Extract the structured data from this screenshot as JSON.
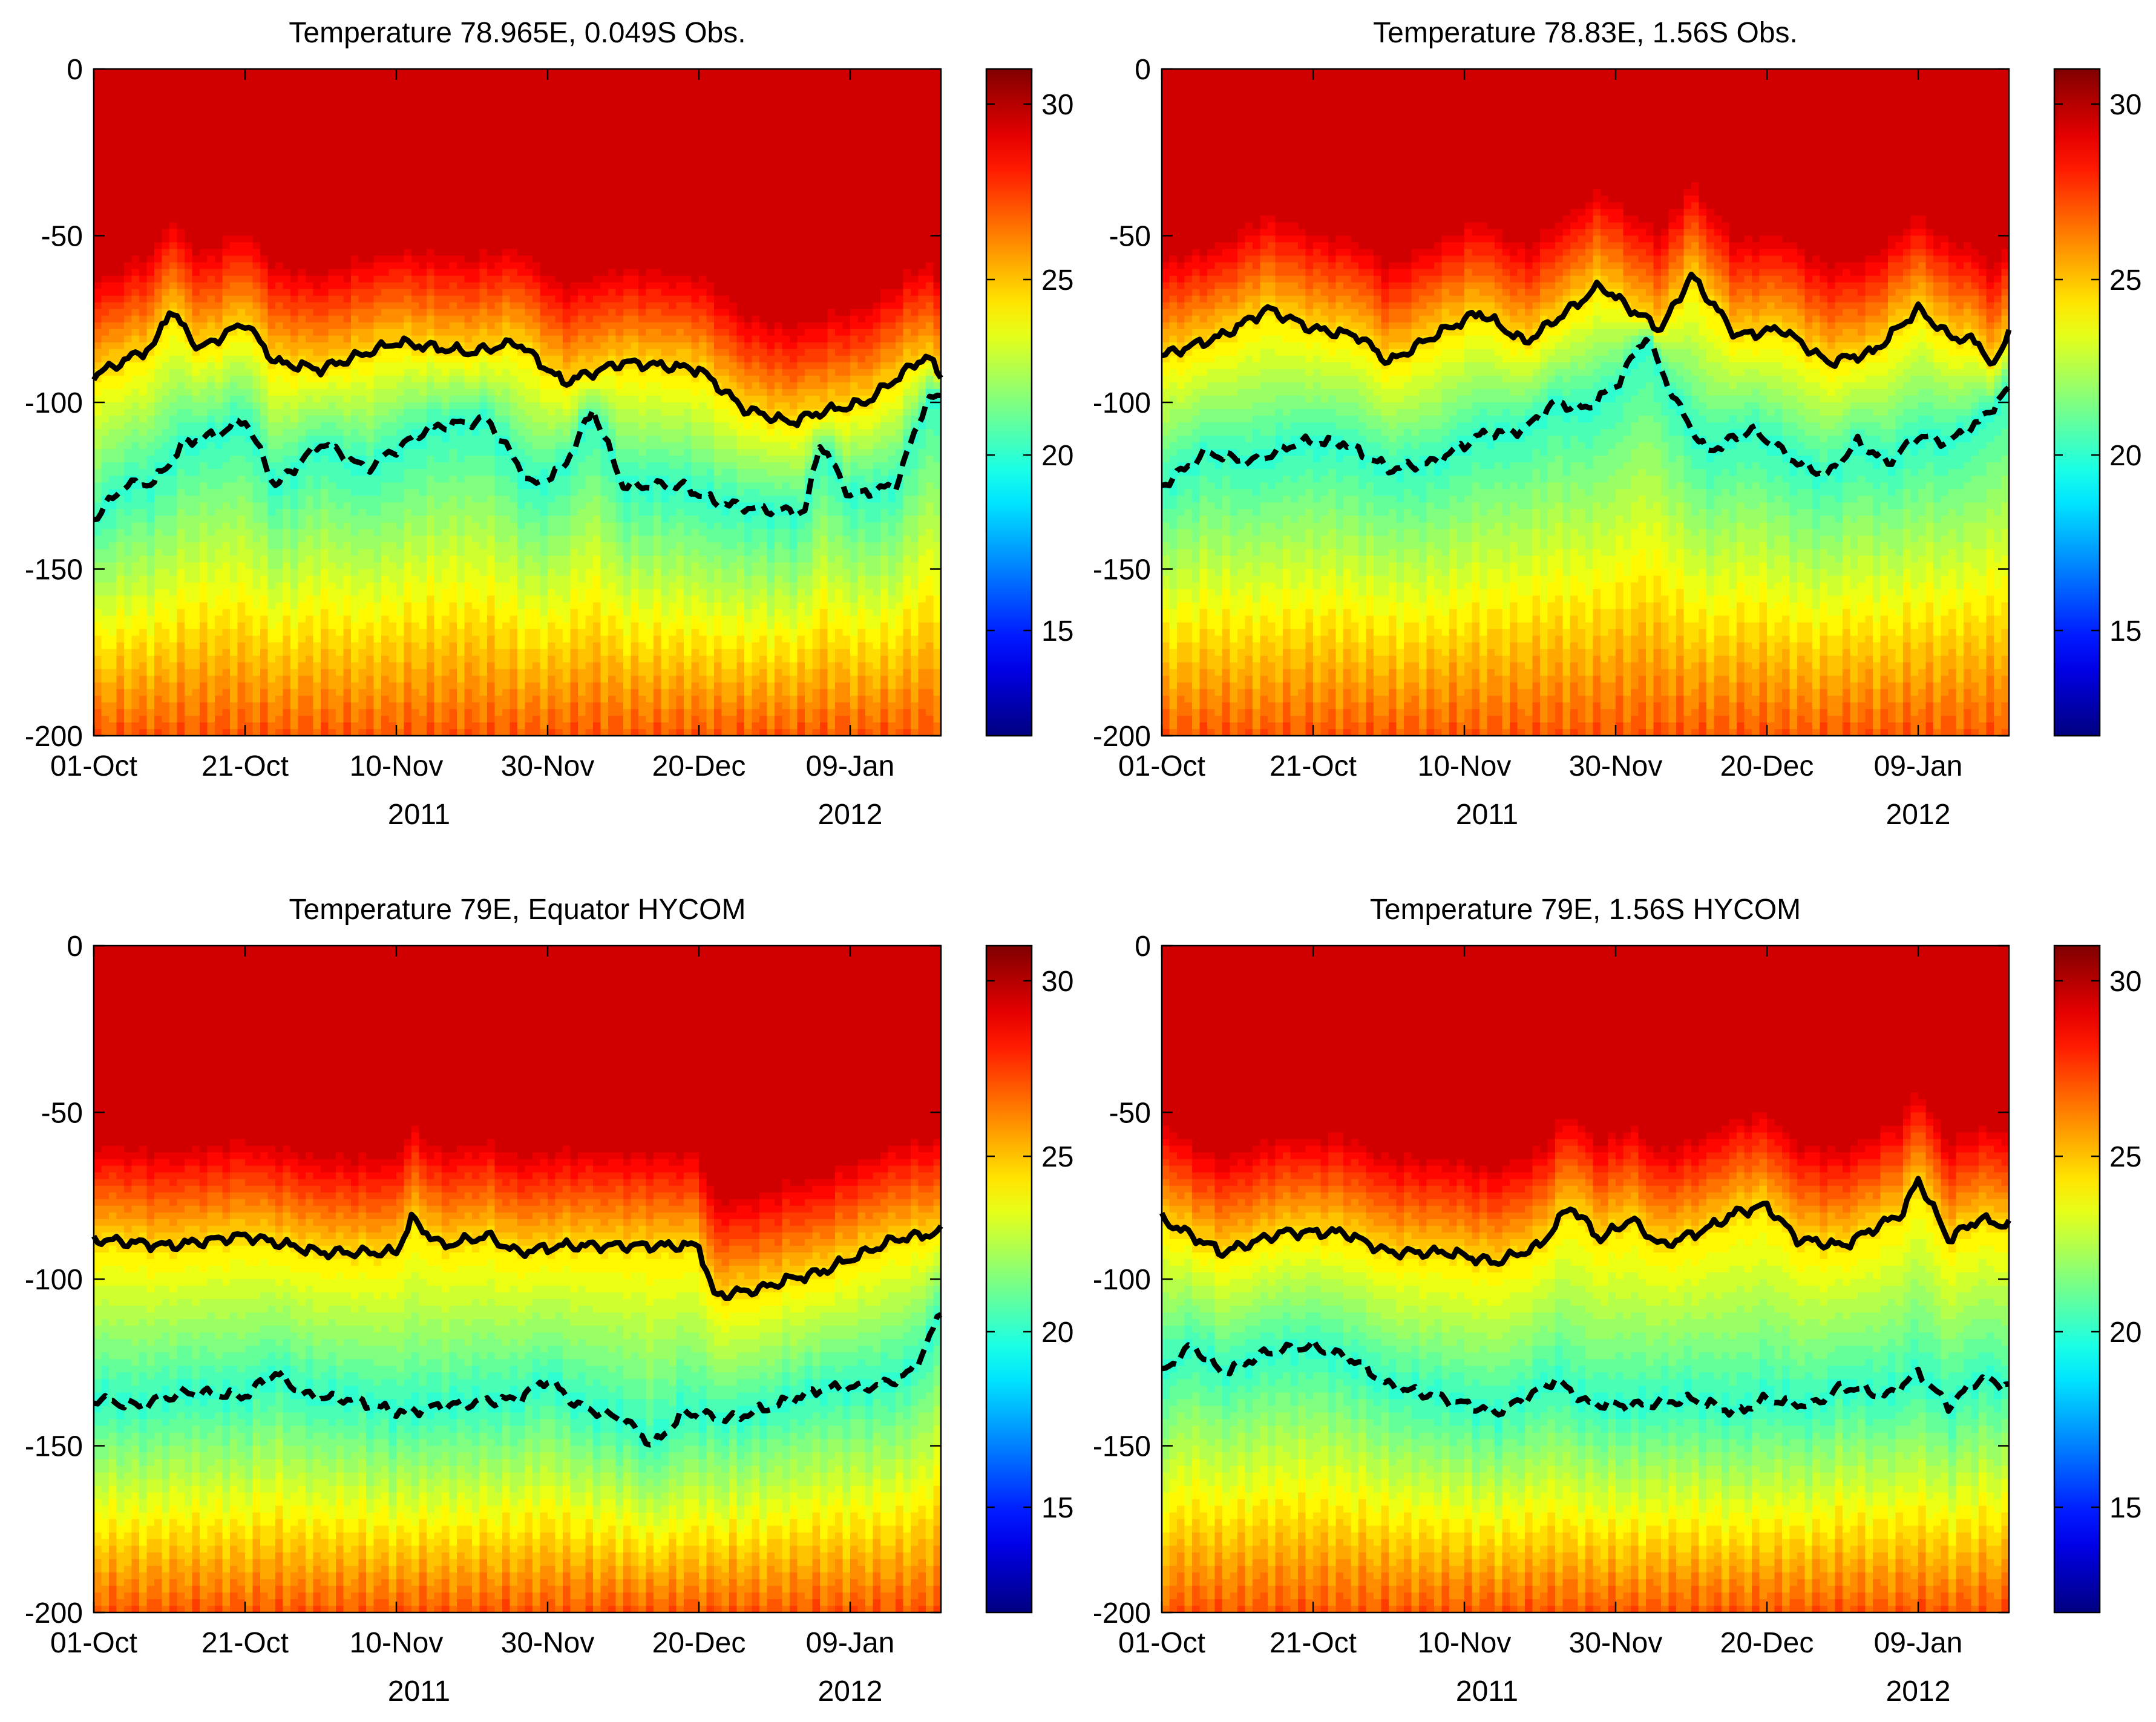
{
  "figure": {
    "kind": "4-panel time-depth temperature sections"
  },
  "chart_data": [
    {
      "type": "heatmap",
      "title": "Temperature 78.965E, 0.049S Obs.",
      "x_tick_labels": [
        "01-Oct",
        "21-Oct",
        "10-Nov",
        "30-Nov",
        "20-Dec",
        "09-Jan"
      ],
      "x_tick_days": [
        0,
        20,
        40,
        60,
        80,
        100
      ],
      "year_labels": [
        "2011",
        "2012"
      ],
      "year_label_days": [
        43,
        100
      ],
      "x_range_days": [
        0,
        112
      ],
      "y_ticks": [
        0,
        -50,
        -100,
        -150,
        -200
      ],
      "y_tick_labels": [
        "0",
        "-50",
        "-100",
        "-150",
        "-200"
      ],
      "ylim": [
        -200,
        0
      ],
      "colorbar": {
        "range": [
          12,
          31
        ],
        "ticks": [
          15,
          20,
          25,
          30
        ],
        "tick_labels": [
          "15",
          "20",
          "25",
          "30"
        ],
        "colormap": "jet"
      },
      "series": [
        {
          "name": "isotherm (solid)",
          "style": "solid",
          "base_depth": -88,
          "amplitude": 5,
          "seed": 11,
          "knots": [
            [
              0,
              -92
            ],
            [
              8,
              -83
            ],
            [
              10,
              -72
            ],
            [
              14,
              -84
            ],
            [
              20,
              -76
            ],
            [
              24,
              -88
            ],
            [
              30,
              -90
            ],
            [
              40,
              -82
            ],
            [
              50,
              -85
            ],
            [
              56,
              -82
            ],
            [
              62,
              -94
            ],
            [
              70,
              -88
            ],
            [
              80,
              -90
            ],
            [
              86,
              -102
            ],
            [
              92,
              -106
            ],
            [
              96,
              -103
            ],
            [
              102,
              -100
            ],
            [
              106,
              -93
            ],
            [
              110,
              -86
            ],
            [
              112,
              -92
            ]
          ]
        },
        {
          "name": "isotherm (dashed)",
          "style": "dashed",
          "base_depth": -120,
          "amplitude": 7,
          "seed": 23,
          "knots": [
            [
              0,
              -135
            ],
            [
              4,
              -125
            ],
            [
              8,
              -124
            ],
            [
              12,
              -112
            ],
            [
              16,
              -110
            ],
            [
              20,
              -105
            ],
            [
              24,
              -125
            ],
            [
              30,
              -112
            ],
            [
              36,
              -120
            ],
            [
              44,
              -108
            ],
            [
              52,
              -105
            ],
            [
              58,
              -125
            ],
            [
              62,
              -120
            ],
            [
              66,
              -102
            ],
            [
              70,
              -125
            ],
            [
              78,
              -125
            ],
            [
              82,
              -130
            ],
            [
              88,
              -132
            ],
            [
              94,
              -133
            ],
            [
              96,
              -112
            ],
            [
              100,
              -128
            ],
            [
              106,
              -125
            ],
            [
              110,
              -100
            ],
            [
              112,
              -98
            ]
          ]
        }
      ]
    },
    {
      "type": "heatmap",
      "title": "Temperature 78.83E, 1.56S Obs.",
      "x_tick_labels": [
        "01-Oct",
        "21-Oct",
        "10-Nov",
        "30-Nov",
        "20-Dec",
        "09-Jan"
      ],
      "x_tick_days": [
        0,
        20,
        40,
        60,
        80,
        100
      ],
      "year_labels": [
        "2011",
        "2012"
      ],
      "year_label_days": [
        43,
        100
      ],
      "x_range_days": [
        0,
        112
      ],
      "y_ticks": [
        0,
        -50,
        -100,
        -150,
        -200
      ],
      "y_tick_labels": [
        "0",
        "-50",
        "-100",
        "-150",
        "-200"
      ],
      "ylim": [
        -200,
        0
      ],
      "colorbar": {
        "range": [
          12,
          31
        ],
        "ticks": [
          15,
          20,
          25,
          30
        ],
        "tick_labels": [
          "15",
          "20",
          "25",
          "30"
        ],
        "colormap": "jet"
      },
      "series": [
        {
          "name": "isotherm (solid)",
          "style": "solid",
          "base_depth": -80,
          "amplitude": 6,
          "seed": 31,
          "knots": [
            [
              0,
              -86
            ],
            [
              8,
              -80
            ],
            [
              14,
              -72
            ],
            [
              20,
              -78
            ],
            [
              26,
              -80
            ],
            [
              30,
              -88
            ],
            [
              36,
              -80
            ],
            [
              42,
              -73
            ],
            [
              48,
              -82
            ],
            [
              54,
              -72
            ],
            [
              58,
              -65
            ],
            [
              62,
              -72
            ],
            [
              66,
              -78
            ],
            [
              70,
              -62
            ],
            [
              76,
              -80
            ],
            [
              82,
              -78
            ],
            [
              88,
              -88
            ],
            [
              94,
              -85
            ],
            [
              100,
              -72
            ],
            [
              104,
              -80
            ],
            [
              108,
              -82
            ],
            [
              110,
              -90
            ],
            [
              112,
              -78
            ]
          ]
        },
        {
          "name": "isotherm (dashed)",
          "style": "dashed",
          "base_depth": -112,
          "amplitude": 7,
          "seed": 41,
          "knots": [
            [
              0,
              -125
            ],
            [
              6,
              -115
            ],
            [
              12,
              -118
            ],
            [
              18,
              -112
            ],
            [
              24,
              -112
            ],
            [
              30,
              -120
            ],
            [
              36,
              -118
            ],
            [
              42,
              -110
            ],
            [
              48,
              -108
            ],
            [
              52,
              -100
            ],
            [
              56,
              -102
            ],
            [
              60,
              -95
            ],
            [
              64,
              -80
            ],
            [
              68,
              -100
            ],
            [
              72,
              -115
            ],
            [
              78,
              -108
            ],
            [
              84,
              -118
            ],
            [
              88,
              -122
            ],
            [
              92,
              -112
            ],
            [
              96,
              -118
            ],
            [
              100,
              -110
            ],
            [
              104,
              -112
            ],
            [
              108,
              -106
            ],
            [
              112,
              -96
            ]
          ]
        }
      ]
    },
    {
      "type": "heatmap",
      "title": "Temperature 79E, Equator HYCOM",
      "x_tick_labels": [
        "01-Oct",
        "21-Oct",
        "10-Nov",
        "30-Nov",
        "20-Dec",
        "09-Jan"
      ],
      "x_tick_days": [
        0,
        20,
        40,
        60,
        80,
        100
      ],
      "year_labels": [
        "2011",
        "2012"
      ],
      "year_label_days": [
        43,
        100
      ],
      "x_range_days": [
        0,
        112
      ],
      "y_ticks": [
        0,
        -50,
        -100,
        -150,
        -200
      ],
      "y_tick_labels": [
        "0",
        "-50",
        "-100",
        "-150",
        "-200"
      ],
      "ylim": [
        -200,
        0
      ],
      "colorbar": {
        "range": [
          12,
          31
        ],
        "ticks": [
          15,
          20,
          25,
          30
        ],
        "tick_labels": [
          "15",
          "20",
          "25",
          "30"
        ],
        "colormap": "jet"
      },
      "series": [
        {
          "name": "isotherm (solid)",
          "style": "solid",
          "base_depth": -90,
          "amplitude": 4,
          "seed": 53,
          "knots": [
            [
              0,
              -88
            ],
            [
              10,
              -90
            ],
            [
              20,
              -87
            ],
            [
              30,
              -92
            ],
            [
              40,
              -92
            ],
            [
              42,
              -82
            ],
            [
              46,
              -90
            ],
            [
              52,
              -87
            ],
            [
              56,
              -92
            ],
            [
              62,
              -90
            ],
            [
              70,
              -90
            ],
            [
              80,
              -90
            ],
            [
              82,
              -105
            ],
            [
              88,
              -103
            ],
            [
              92,
              -100
            ],
            [
              96,
              -98
            ],
            [
              102,
              -92
            ],
            [
              106,
              -88
            ],
            [
              112,
              -86
            ]
          ]
        },
        {
          "name": "isotherm (dashed)",
          "style": "dashed",
          "base_depth": -138,
          "amplitude": 4,
          "seed": 61,
          "knots": [
            [
              0,
              -136
            ],
            [
              6,
              -138
            ],
            [
              12,
              -134
            ],
            [
              20,
              -135
            ],
            [
              24,
              -128
            ],
            [
              28,
              -135
            ],
            [
              34,
              -136
            ],
            [
              40,
              -140
            ],
            [
              50,
              -137
            ],
            [
              56,
              -136
            ],
            [
              60,
              -130
            ],
            [
              64,
              -138
            ],
            [
              70,
              -142
            ],
            [
              74,
              -150
            ],
            [
              78,
              -140
            ],
            [
              84,
              -142
            ],
            [
              90,
              -138
            ],
            [
              96,
              -133
            ],
            [
              104,
              -132
            ],
            [
              108,
              -128
            ],
            [
              110,
              -120
            ],
            [
              112,
              -110
            ]
          ]
        }
      ]
    },
    {
      "type": "heatmap",
      "title": "Temperature 79E, 1.56S HYCOM",
      "x_tick_labels": [
        "01-Oct",
        "21-Oct",
        "10-Nov",
        "30-Nov",
        "20-Dec",
        "09-Jan"
      ],
      "x_tick_days": [
        0,
        20,
        40,
        60,
        80,
        100
      ],
      "year_labels": [
        "2011",
        "2012"
      ],
      "year_label_days": [
        43,
        100
      ],
      "x_range_days": [
        0,
        112
      ],
      "y_ticks": [
        0,
        -50,
        -100,
        -150,
        -200
      ],
      "y_tick_labels": [
        "0",
        "-50",
        "-100",
        "-150",
        "-200"
      ],
      "ylim": [
        -200,
        0
      ],
      "colorbar": {
        "range": [
          12,
          31
        ],
        "ticks": [
          15,
          20,
          25,
          30
        ],
        "tick_labels": [
          "15",
          "20",
          "25",
          "30"
        ],
        "colormap": "jet"
      },
      "series": [
        {
          "name": "isotherm (solid)",
          "style": "solid",
          "base_depth": -88,
          "amplitude": 4,
          "seed": 71,
          "knots": [
            [
              0,
              -82
            ],
            [
              8,
              -92
            ],
            [
              16,
              -86
            ],
            [
              24,
              -86
            ],
            [
              30,
              -92
            ],
            [
              38,
              -92
            ],
            [
              44,
              -95
            ],
            [
              50,
              -90
            ],
            [
              54,
              -78
            ],
            [
              58,
              -88
            ],
            [
              62,
              -82
            ],
            [
              66,
              -90
            ],
            [
              72,
              -85
            ],
            [
              76,
              -80
            ],
            [
              80,
              -78
            ],
            [
              84,
              -88
            ],
            [
              90,
              -90
            ],
            [
              94,
              -85
            ],
            [
              98,
              -80
            ],
            [
              100,
              -70
            ],
            [
              104,
              -88
            ],
            [
              108,
              -82
            ],
            [
              112,
              -84
            ]
          ]
        },
        {
          "name": "isotherm (dashed)",
          "style": "dashed",
          "base_depth": -132,
          "amplitude": 5,
          "seed": 83,
          "knots": [
            [
              0,
              -128
            ],
            [
              4,
              -120
            ],
            [
              8,
              -128
            ],
            [
              14,
              -122
            ],
            [
              20,
              -120
            ],
            [
              26,
              -125
            ],
            [
              30,
              -132
            ],
            [
              36,
              -135
            ],
            [
              44,
              -140
            ],
            [
              48,
              -136
            ],
            [
              52,
              -130
            ],
            [
              56,
              -137
            ],
            [
              62,
              -138
            ],
            [
              70,
              -136
            ],
            [
              76,
              -140
            ],
            [
              80,
              -136
            ],
            [
              86,
              -138
            ],
            [
              90,
              -132
            ],
            [
              96,
              -135
            ],
            [
              100,
              -128
            ],
            [
              104,
              -138
            ],
            [
              108,
              -130
            ],
            [
              112,
              -132
            ]
          ]
        }
      ]
    }
  ]
}
